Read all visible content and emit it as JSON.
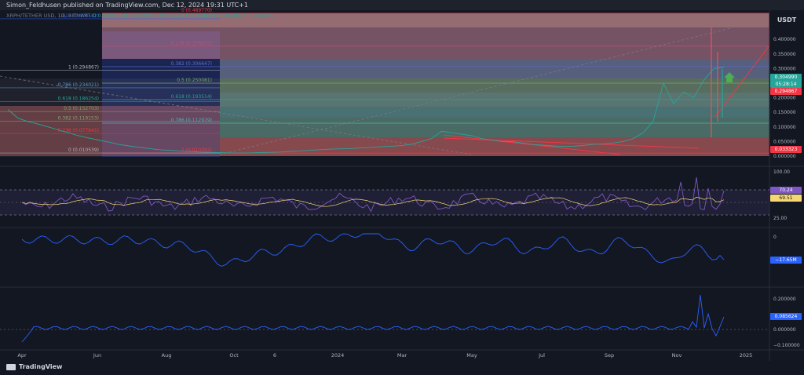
{
  "header": {
    "published": "Simon_Feldhusen published on TradingView.com, Dec 12, 2024 19:31 UTC+1"
  },
  "symbol": {
    "name": "XRPH/TETHER USD, 1D, BITMART",
    "ohlc": "O 0.230013  H 0.330000  L 0.215628  C 0.304990  +0.074977 (+32.60%)"
  },
  "scale": {
    "currency": "USDT",
    "ticks": [
      "0.450000",
      "0.400000",
      "0.350000",
      "0.300000",
      "0.250000",
      "0.200000",
      "0.150000",
      "0.100000",
      "0.050000",
      "0.000000"
    ],
    "last_price": "0.304990",
    "countdown": "05:28:14",
    "level_tag": "0.294867",
    "low_tag": "0.033323"
  },
  "fib_right": [
    {
      "label": "0 (0.489770)",
      "value": 0.48977
    },
    {
      "label": "0.236 (0.376637)",
      "value": 0.376637
    },
    {
      "label": "0.382 (0.306647)",
      "value": 0.306647
    },
    {
      "label": "0.5 (0.250081)",
      "value": 0.250081
    },
    {
      "label": "0.618 (0.193514)",
      "value": 0.193514
    },
    {
      "label": "0.786 (0.112979)",
      "value": 0.112979
    },
    {
      "label": "1 (0.010392)",
      "value": 0.010392
    }
  ],
  "fib_left": [
    {
      "label": "1.618 (0.470582)",
      "value": 0.470582
    },
    {
      "label": "1 (0.294867)",
      "value": 0.294867
    },
    {
      "label": "0.786 (0.234021)",
      "value": 0.234021
    },
    {
      "label": "0.618 (0.186254)",
      "value": 0.186254
    },
    {
      "label": "0.5 (0.152703)",
      "value": 0.152703
    },
    {
      "label": "0.382 (0.119153)",
      "value": 0.119153
    },
    {
      "label": "0.236 (0.077641)",
      "value": 0.077641
    },
    {
      "label": "0 (0.010539)",
      "value": 0.010539
    }
  ],
  "rsi": {
    "ticks": [
      "100.00",
      "25.00"
    ],
    "value1": "70.24",
    "value2": "69.51"
  },
  "obv": {
    "tick": "0",
    "value": "−17.65M"
  },
  "osc": {
    "ticks": [
      "0.200000",
      "0.000000",
      "−0.100000"
    ],
    "value": "0.085624"
  },
  "x_axis": [
    "Apr",
    "Jun",
    "Aug",
    "Oct",
    "6",
    "2024",
    "Mar",
    "May",
    "Jul",
    "Sep",
    "Nov",
    "2025"
  ],
  "brand": "TradingView",
  "colors": {
    "bg": "#131722",
    "candle_up": "#26a69a",
    "candle_down": "#ef5350",
    "rsi": "#7e57c2",
    "obv": "#2962ff"
  },
  "chart_data": {
    "type": "line",
    "title": "",
    "xlabel": "",
    "ylabel": "",
    "ylim": [
      0,
      0.5
    ],
    "series": [
      {
        "values": [
          0.16,
          0.13,
          0.118,
          0.11,
          0.1,
          0.09,
          0.08,
          0.07,
          0.062,
          0.055,
          0.048,
          0.04,
          0.035,
          0.03,
          0.026,
          0.022,
          0.02,
          0.018,
          0.016,
          0.014,
          0.013,
          0.012,
          0.011,
          0.0105,
          0.011,
          0.012,
          0.013,
          0.014,
          0.016,
          0.018,
          0.02,
          0.022,
          0.024,
          0.025,
          0.026,
          0.028,
          0.03,
          0.032,
          0.034,
          0.036,
          0.04,
          0.05,
          0.06,
          0.085,
          0.08,
          0.075,
          0.07,
          0.06,
          0.055,
          0.05,
          0.05,
          0.045,
          0.04,
          0.038,
          0.035,
          0.033,
          0.034,
          0.036,
          0.04,
          0.042,
          0.045,
          0.05,
          0.06,
          0.08,
          0.12,
          0.25,
          0.18,
          0.22,
          0.2,
          0.26,
          0.3,
          0.305
        ]
      }
    ]
  }
}
